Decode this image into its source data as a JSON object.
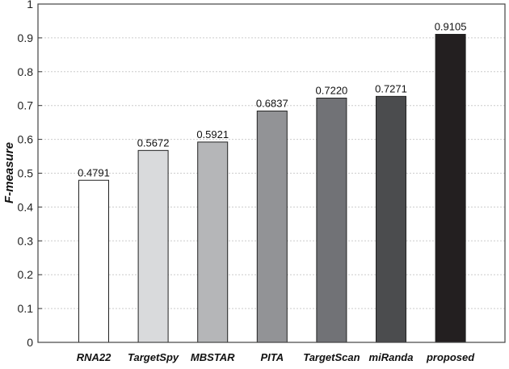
{
  "chart_data": {
    "type": "bar",
    "categories": [
      "RNA22",
      "TargetSpy",
      "MBSTAR",
      "PITA",
      "TargetScan",
      "miRanda",
      "proposed"
    ],
    "values": [
      0.4791,
      0.5672,
      0.5921,
      0.6837,
      0.722,
      0.7271,
      0.9105
    ],
    "data_labels": [
      "0.4791",
      "0.5672",
      "0.5921",
      "0.6837",
      "0.7220",
      "0.7271",
      "0.9105"
    ],
    "colors": [
      "#ffffff",
      "#d9dadc",
      "#b5b6b8",
      "#929396",
      "#717276",
      "#4b4c4e",
      "#231f20"
    ],
    "ylabel": "F-measure",
    "xlabel": "",
    "ylim": [
      0,
      1
    ],
    "yticks": [
      "0",
      "0.1",
      "0.2",
      "0.3",
      "0.4",
      "0.5",
      "0.6",
      "0.7",
      "0.8",
      "0.9",
      "1"
    ],
    "grid": "horizontal dotted"
  }
}
